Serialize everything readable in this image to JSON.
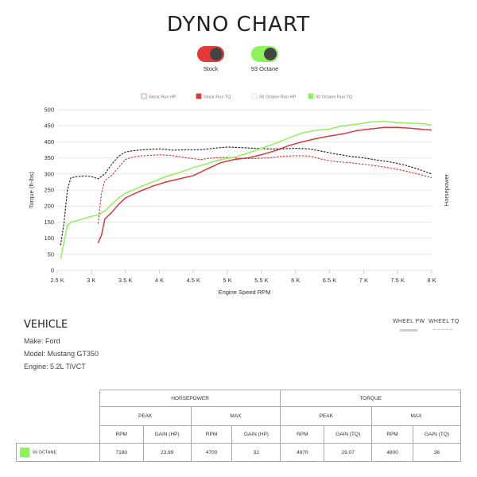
{
  "title": "DYNO CHART",
  "toggles": [
    {
      "label": "Stock",
      "color": "#e53935"
    },
    {
      "label": "93 Octane",
      "color": "#8ef25a"
    }
  ],
  "colors": {
    "stock": "#d63a3a",
    "octane": "#8ef25a",
    "grid": "#e6e6e6"
  },
  "chart_data": {
    "type": "line",
    "xlabel": "Engine Speed RPM",
    "ylabel": "Torque (ft-lbs)",
    "y2label": "Horsepower",
    "xlim": [
      2500,
      8000
    ],
    "ylim": [
      0,
      500
    ],
    "x_ticks": [
      2500,
      3000,
      3500,
      4000,
      4500,
      5000,
      5500,
      6000,
      6500,
      7000,
      7500,
      8000
    ],
    "x_tick_labels": [
      "2.5 K",
      "3 K",
      "3.5 K",
      "4 K",
      "4.5 K",
      "5 K",
      "5.5 K",
      "6 K",
      "6.5 K",
      "7 K",
      "7.5 K",
      "8 K"
    ],
    "y_ticks": [
      0,
      50,
      100,
      150,
      200,
      250,
      300,
      350,
      400,
      450,
      500
    ],
    "grid": true,
    "legend_position": "top",
    "legend": [
      "Stock Run HP",
      "Stock Run TQ",
      "93 Octane Run HP",
      "93 Octane Run TQ"
    ],
    "series": [
      {
        "name": "Stock Run HP",
        "color": "#d63a3a",
        "dash": true,
        "points": [
          [
            3100,
            145
          ],
          [
            3150,
            240
          ],
          [
            3200,
            280
          ],
          [
            3300,
            295
          ],
          [
            3400,
            320
          ],
          [
            3500,
            345
          ],
          [
            3600,
            352
          ],
          [
            3700,
            356
          ],
          [
            3800,
            357
          ],
          [
            3900,
            358
          ],
          [
            4000,
            360
          ],
          [
            4200,
            357
          ],
          [
            4400,
            350
          ],
          [
            4600,
            345
          ],
          [
            4800,
            350
          ],
          [
            5000,
            352
          ],
          [
            5200,
            348
          ],
          [
            5400,
            348
          ],
          [
            5600,
            350
          ],
          [
            5800,
            355
          ],
          [
            6000,
            357
          ],
          [
            6200,
            356
          ],
          [
            6400,
            345
          ],
          [
            6600,
            338
          ],
          [
            6800,
            335
          ],
          [
            7000,
            330
          ],
          [
            7200,
            325
          ],
          [
            7400,
            318
          ],
          [
            7600,
            310
          ],
          [
            7800,
            300
          ],
          [
            8000,
            288
          ]
        ]
      },
      {
        "name": "Stock Run TQ",
        "color": "#d63a3a",
        "dash": false,
        "points": [
          [
            3100,
            85
          ],
          [
            3150,
            110
          ],
          [
            3200,
            160
          ],
          [
            3300,
            180
          ],
          [
            3400,
            205
          ],
          [
            3500,
            225
          ],
          [
            3700,
            245
          ],
          [
            3900,
            262
          ],
          [
            4100,
            275
          ],
          [
            4300,
            285
          ],
          [
            4500,
            295
          ],
          [
            4700,
            315
          ],
          [
            4900,
            335
          ],
          [
            5100,
            345
          ],
          [
            5300,
            350
          ],
          [
            5500,
            360
          ],
          [
            5700,
            372
          ],
          [
            5900,
            388
          ],
          [
            6100,
            400
          ],
          [
            6300,
            410
          ],
          [
            6500,
            418
          ],
          [
            6700,
            425
          ],
          [
            6900,
            435
          ],
          [
            7100,
            440
          ],
          [
            7300,
            445
          ],
          [
            7500,
            445
          ],
          [
            7700,
            442
          ],
          [
            7900,
            438
          ],
          [
            8000,
            437
          ]
        ]
      },
      {
        "name": "93 Octane Run HP",
        "color": "#1a1a1a",
        "dash": true,
        "points": [
          [
            2550,
            78
          ],
          [
            2600,
            150
          ],
          [
            2650,
            250
          ],
          [
            2700,
            288
          ],
          [
            2800,
            292
          ],
          [
            2900,
            294
          ],
          [
            3000,
            292
          ],
          [
            3100,
            285
          ],
          [
            3200,
            300
          ],
          [
            3300,
            330
          ],
          [
            3400,
            355
          ],
          [
            3500,
            368
          ],
          [
            3600,
            372
          ],
          [
            3800,
            376
          ],
          [
            4000,
            378
          ],
          [
            4200,
            374
          ],
          [
            4400,
            375
          ],
          [
            4600,
            375
          ],
          [
            4800,
            380
          ],
          [
            5000,
            384
          ],
          [
            5200,
            382
          ],
          [
            5400,
            380
          ],
          [
            5600,
            378
          ],
          [
            5800,
            378
          ],
          [
            6000,
            380
          ],
          [
            6200,
            378
          ],
          [
            6400,
            370
          ],
          [
            6600,
            362
          ],
          [
            6800,
            355
          ],
          [
            7000,
            350
          ],
          [
            7200,
            343
          ],
          [
            7400,
            337
          ],
          [
            7600,
            328
          ],
          [
            7800,
            315
          ],
          [
            8000,
            300
          ]
        ]
      },
      {
        "name": "93 Octane Run TQ",
        "color": "#8ef25a",
        "dash": false,
        "points": [
          [
            2550,
            35
          ],
          [
            2600,
            90
          ],
          [
            2650,
            140
          ],
          [
            2700,
            150
          ],
          [
            2800,
            155
          ],
          [
            2900,
            162
          ],
          [
            3000,
            168
          ],
          [
            3100,
            172
          ],
          [
            3200,
            185
          ],
          [
            3300,
            205
          ],
          [
            3400,
            225
          ],
          [
            3500,
            240
          ],
          [
            3700,
            258
          ],
          [
            3900,
            275
          ],
          [
            4100,
            292
          ],
          [
            4300,
            305
          ],
          [
            4500,
            320
          ],
          [
            4700,
            332
          ],
          [
            4900,
            345
          ],
          [
            5100,
            352
          ],
          [
            5300,
            365
          ],
          [
            5500,
            380
          ],
          [
            5700,
            395
          ],
          [
            5900,
            412
          ],
          [
            6100,
            428
          ],
          [
            6300,
            436
          ],
          [
            6500,
            440
          ],
          [
            6700,
            450
          ],
          [
            6900,
            455
          ],
          [
            7100,
            462
          ],
          [
            7300,
            464
          ],
          [
            7500,
            460
          ],
          [
            7700,
            458
          ],
          [
            7900,
            456
          ],
          [
            8000,
            452
          ]
        ]
      }
    ]
  },
  "vehicle": {
    "title": "VEHICLE",
    "make": "Make: Ford",
    "model": "Model: Mustang GT350",
    "engine": "Engine: 5.2L TiVCT"
  },
  "wheel_tabs": [
    "WHEEL PW",
    "WHEEL TQ"
  ],
  "table": {
    "group_headers": [
      "HORSEPOWER",
      "TORQUE"
    ],
    "sub_headers": [
      "PEAK",
      "MAX",
      "PEAK",
      "MAX"
    ],
    "columns": [
      "RPM",
      "GAIN (HP)",
      "RPM",
      "GAIN (HP)",
      "RPM",
      "GAIN (TQ)",
      "RPM",
      "GAIN (TQ)"
    ],
    "rows": [
      {
        "label": "93 OCTANE",
        "color": "#8ef25a",
        "values": [
          "7180",
          "23.99",
          "4700",
          "32",
          "4970",
          "29.07",
          "4800",
          "36"
        ]
      }
    ]
  }
}
